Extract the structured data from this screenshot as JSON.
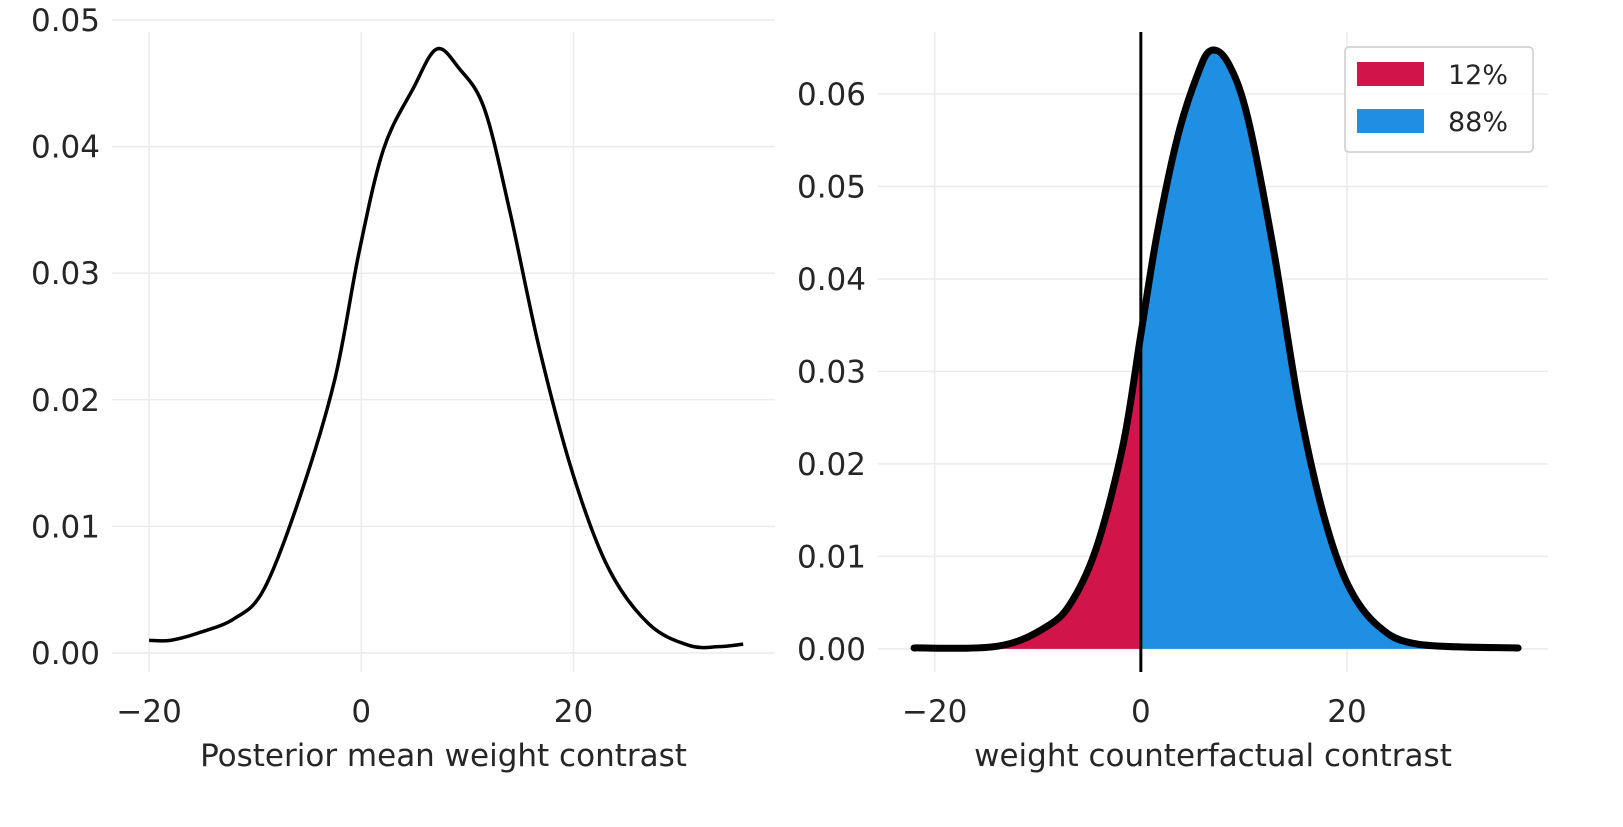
{
  "chart_data": [
    {
      "type": "line",
      "title": "",
      "xlabel": "Posterior mean weight contrast",
      "ylabel": "",
      "xlim": [
        -23.5,
        39
      ],
      "ylim": [
        -0.0015,
        0.05
      ],
      "xticks": [
        -20,
        0,
        20
      ],
      "xtick_labels": [
        "−20",
        "0",
        "20"
      ],
      "yticks": [
        0,
        0.01,
        0.02,
        0.03,
        0.04,
        0.05
      ],
      "ytick_labels": [
        "0.00",
        "0.01",
        "0.02",
        "0.03",
        "0.04",
        "0.05"
      ],
      "grid": true,
      "series": [
        {
          "name": "density",
          "color": "#000000",
          "x": [
            -20,
            -18,
            -15.3,
            -12,
            -9.2,
            -5.8,
            -2.5,
            -0.2,
            2.1,
            4.9,
            7.1,
            9.2,
            11.6,
            14,
            16.8,
            20,
            23.3,
            27.1,
            30.9,
            33.7,
            36
          ],
          "y": [
            0.001,
            0.001,
            0.0016,
            0.0027,
            0.005,
            0.0123,
            0.0216,
            0.0317,
            0.0398,
            0.0446,
            0.0477,
            0.0462,
            0.043,
            0.0349,
            0.024,
            0.014,
            0.0067,
            0.0023,
            0.0006,
            0.0005,
            0.0007
          ]
        }
      ]
    },
    {
      "type": "area",
      "title": "",
      "xlabel": "weight counterfactual contrast",
      "ylabel": "",
      "xlim": [
        -25.5,
        39.5
      ],
      "ylim": [
        -0.0025,
        0.068
      ],
      "xticks": [
        -20,
        0,
        20
      ],
      "xtick_labels": [
        "−20",
        "0",
        "20"
      ],
      "yticks": [
        0,
        0.01,
        0.02,
        0.03,
        0.04,
        0.05,
        0.06
      ],
      "ytick_labels": [
        "0.00",
        "0.01",
        "0.02",
        "0.03",
        "0.04",
        "0.05",
        "0.06"
      ],
      "grid": true,
      "reference_line_x": 0,
      "legend_position": "top-right",
      "legend": [
        {
          "label": "12%",
          "color": "#d1144a"
        },
        {
          "label": "88%",
          "color": "#1e8fe3"
        }
      ],
      "series": [
        {
          "name": "density",
          "color": "#000000",
          "x": [
            -22,
            -13.8,
            -9,
            -6.6,
            -4.2,
            -1.7,
            0,
            1.6,
            3.6,
            5.5,
            6.8,
            8.5,
            10.4,
            12.9,
            15.3,
            17.7,
            20.1,
            23,
            26.9,
            36.6
          ],
          "y": [
            0.0001,
            0.0003,
            0.0025,
            0.0053,
            0.0113,
            0.0222,
            0.034,
            0.045,
            0.0555,
            0.0621,
            0.0647,
            0.0633,
            0.0573,
            0.043,
            0.0266,
            0.0146,
            0.0069,
            0.0025,
            0.0005,
            0.0001
          ]
        }
      ]
    }
  ]
}
